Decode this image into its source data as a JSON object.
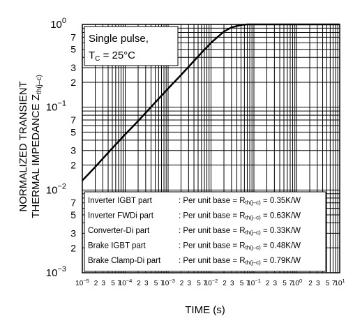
{
  "chart_data": {
    "type": "line",
    "x_scale": "log",
    "y_scale": "log",
    "xlim": [
      1e-05,
      10
    ],
    "ylim": [
      0.001,
      1
    ],
    "grid": true,
    "xlabel": "TIME  (s)",
    "ylabel": {
      "line1": "NORMALIZED TRANSIENT",
      "line2": "THERMAL IMPEDANCE  Z",
      "subscript": "th(j–c)"
    },
    "x_decades": [
      {
        "base": "10",
        "exp": "−5"
      },
      {
        "base": "10",
        "exp": "−4"
      },
      {
        "base": "10",
        "exp": "−3"
      },
      {
        "base": "10",
        "exp": "−2"
      },
      {
        "base": "10",
        "exp": "−1"
      },
      {
        "base": "10",
        "exp": "0"
      },
      {
        "base": "10",
        "exp": "1"
      }
    ],
    "x_minor_labels": [
      "2",
      "3",
      "5",
      "7"
    ],
    "y_decades": [
      {
        "value": 1,
        "base": "10",
        "exp": "0"
      },
      {
        "value": 0.1,
        "base": "10",
        "exp": "−1"
      },
      {
        "value": 0.01,
        "base": "10",
        "exp": "−2"
      },
      {
        "value": 0.001,
        "base": "10",
        "exp": "−3"
      }
    ],
    "y_minor_labels": [
      "7",
      "5",
      "3",
      "2"
    ],
    "series": [
      {
        "x": [
          1e-05,
          2e-05,
          5e-05,
          0.0001,
          0.0002,
          0.0005,
          0.001,
          0.002,
          0.005,
          0.01,
          0.02,
          0.03,
          0.05,
          0.07,
          0.1,
          0.15,
          0.2,
          0.3,
          0.5,
          1,
          2,
          5,
          10
        ],
        "y": [
          0.013,
          0.019,
          0.032,
          0.047,
          0.068,
          0.114,
          0.168,
          0.245,
          0.41,
          0.6,
          0.82,
          0.92,
          0.985,
          1.0,
          1.0,
          1.0,
          1.0,
          1.0,
          1.0,
          1.0,
          1.0,
          1.0,
          1.0
        ],
        "color": "#000000"
      }
    ],
    "annotation": {
      "line1": "Single pulse,",
      "line2_prefix": "T",
      "line2_sub": "C",
      "line2_suffix": " = 25°C"
    },
    "table": [
      {
        "part": "Inverter IGBT part",
        "sep": ": Per unit base = R",
        "sub": "th(j–c)",
        "value": " = 0.35K/W"
      },
      {
        "part": "Inverter FWDi part",
        "sep": ": Per unit base = R",
        "sub": "th(j–c)",
        "value": " = 0.63K/W"
      },
      {
        "part": "Converter-Di part",
        "sep": ": Per unit base = R",
        "sub": "th(j–c)",
        "value": " = 0.33K/W"
      },
      {
        "part": "Brake IGBT part",
        "sep": ": Per unit base = R",
        "sub": "th(j–c)",
        "value": " = 0.48K/W"
      },
      {
        "part": "Brake Clamp-Di part",
        "sep": ": Per unit base = R",
        "sub": "th(j–c)",
        "value": " = 0.79K/W"
      }
    ]
  }
}
